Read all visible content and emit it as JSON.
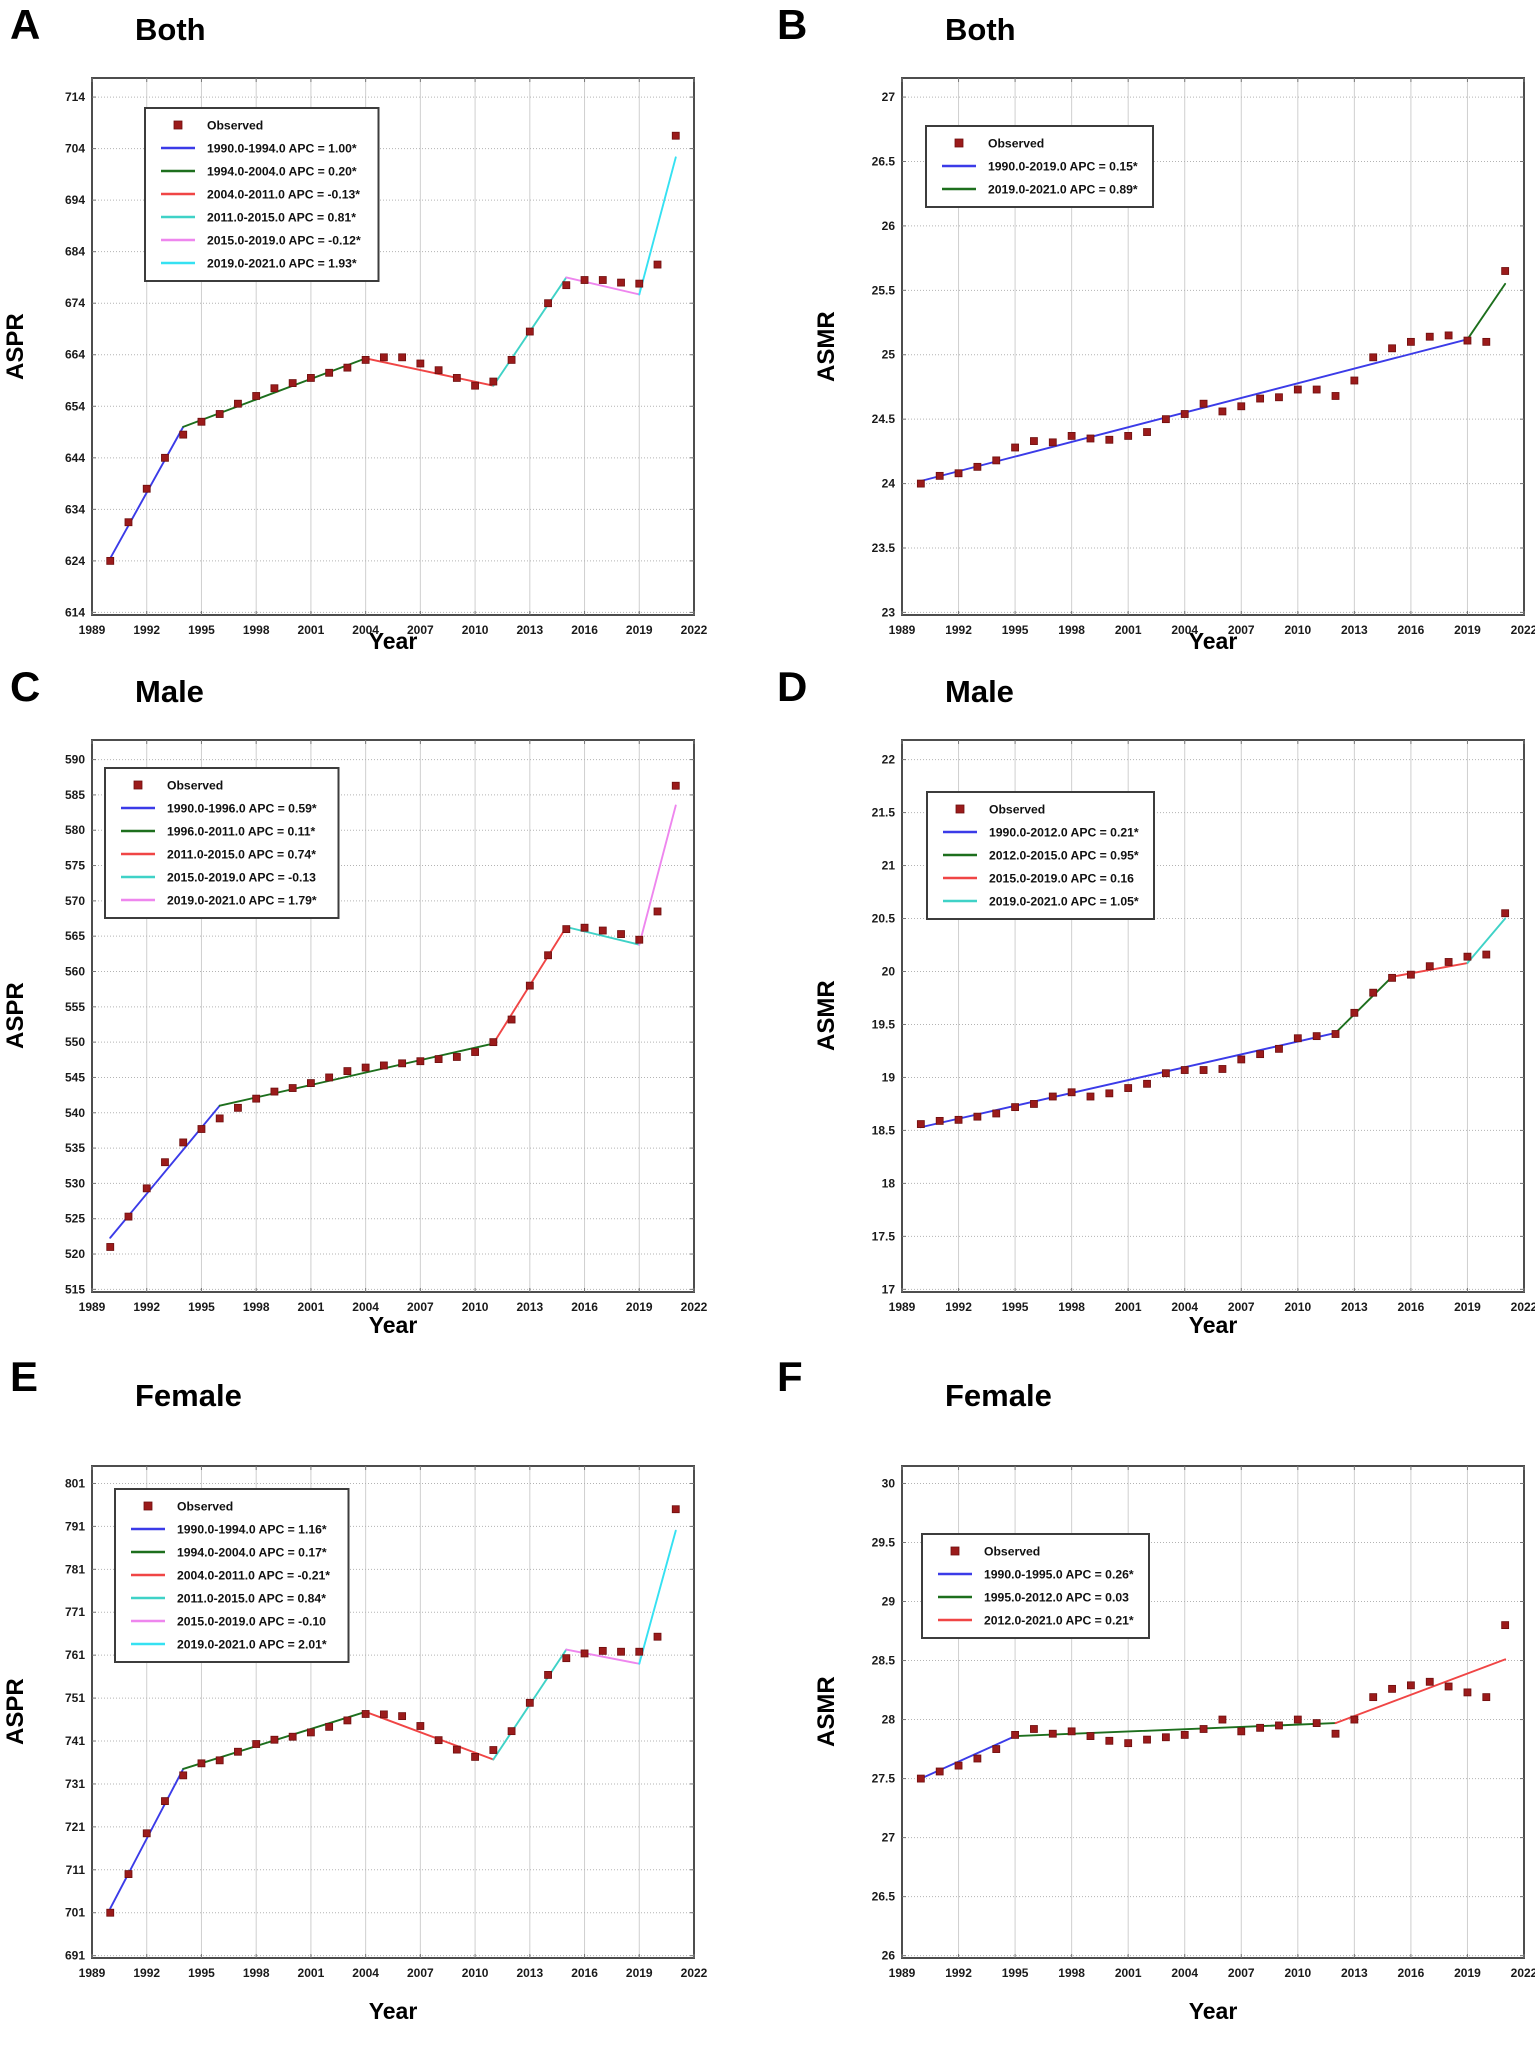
{
  "figure": {
    "x_axis_title": "Year",
    "marker_color": "#9B1B1B",
    "colors": {
      "blue": "#3B3BE8",
      "green": "#1D6F1D",
      "red": "#F04545",
      "turquoise": "#3FD2C7",
      "violet": "#EE86EE",
      "cyan": "#35E1F2"
    }
  },
  "chart_data": [
    {
      "panel_letter": "A",
      "title": "Both",
      "ylabel": "ASPR",
      "xlabel": "Year",
      "type": "scatter",
      "x": [
        1990,
        1991,
        1992,
        1993,
        1994,
        1995,
        1996,
        1997,
        1998,
        1999,
        2000,
        2001,
        2002,
        2003,
        2004,
        2005,
        2006,
        2007,
        2008,
        2009,
        2010,
        2011,
        2012,
        2013,
        2014,
        2015,
        2016,
        2017,
        2018,
        2019,
        2020,
        2021
      ],
      "observed": [
        624,
        631.5,
        638,
        644,
        648.5,
        651,
        652.5,
        654.5,
        656,
        657.5,
        658.5,
        659.5,
        660.5,
        661.5,
        663,
        663.5,
        663.5,
        662.3,
        661,
        659.5,
        658,
        658.8,
        663,
        668.5,
        674,
        677.5,
        678.5,
        678.5,
        678,
        677.8,
        681.5,
        706.5
      ],
      "ylim": [
        614,
        714
      ],
      "ytick_step": 10,
      "xticks": [
        1989,
        1992,
        1995,
        1998,
        2001,
        2004,
        2007,
        2010,
        2013,
        2016,
        2019,
        2022
      ],
      "xlim": [
        1989,
        2022
      ],
      "legend_pos": [
        53,
        30
      ],
      "legend": [
        {
          "label": "Observed",
          "marker": true
        },
        {
          "label": "1990.0-1994.0 APC  =  1.00*",
          "color": "#3B3BE8",
          "x": [
            1990,
            1994
          ],
          "y": [
            624.5,
            650
          ]
        },
        {
          "label": "1994.0-2004.0 APC  =  0.20*",
          "color": "#1D6F1D",
          "x": [
            1994,
            2004
          ],
          "y": [
            650,
            663.3
          ]
        },
        {
          "label": "2004.0-2011.0 APC  = -0.13*",
          "color": "#F04545",
          "x": [
            2004,
            2011
          ],
          "y": [
            663.3,
            658
          ]
        },
        {
          "label": "2011.0-2015.0 APC  =  0.81*",
          "color": "#3FD2C7",
          "x": [
            2011,
            2015
          ],
          "y": [
            658,
            679
          ]
        },
        {
          "label": "2015.0-2019.0 APC  = -0.12*",
          "color": "#EE86EE",
          "x": [
            2015,
            2019
          ],
          "y": [
            679,
            675.7
          ]
        },
        {
          "label": "2019.0-2021.0 APC  =  1.93*",
          "color": "#35E1F2",
          "x": [
            2019,
            2021
          ],
          "y": [
            675.7,
            702.3
          ]
        }
      ]
    },
    {
      "panel_letter": "B",
      "title": "Both",
      "ylabel": "ASMR",
      "xlabel": "Year",
      "type": "scatter",
      "x": [
        1990,
        1991,
        1992,
        1993,
        1994,
        1995,
        1996,
        1997,
        1998,
        1999,
        2000,
        2001,
        2002,
        2003,
        2004,
        2005,
        2006,
        2007,
        2008,
        2009,
        2010,
        2011,
        2012,
        2013,
        2014,
        2015,
        2016,
        2017,
        2018,
        2019,
        2020,
        2021
      ],
      "observed": [
        24.0,
        24.06,
        24.08,
        24.13,
        24.18,
        24.28,
        24.33,
        24.32,
        24.37,
        24.35,
        24.34,
        24.37,
        24.4,
        24.5,
        24.54,
        24.62,
        24.56,
        24.6,
        24.66,
        24.67,
        24.73,
        24.73,
        24.68,
        24.8,
        24.98,
        25.05,
        25.1,
        25.14,
        25.15,
        25.11,
        25.1,
        25.65
      ],
      "ylim": [
        23,
        27
      ],
      "ytick_step": 0.5,
      "xticks": [
        1989,
        1992,
        1995,
        1998,
        2001,
        2004,
        2007,
        2010,
        2013,
        2016,
        2019,
        2022
      ],
      "xlim": [
        1989,
        2022
      ],
      "legend_pos": [
        24,
        48
      ],
      "legend": [
        {
          "label": "Observed",
          "marker": true
        },
        {
          "label": "1990.0-2019.0 APC  = 0.15*",
          "color": "#3B3BE8",
          "x": [
            1990,
            2019
          ],
          "y": [
            24.02,
            25.12
          ]
        },
        {
          "label": "2019.0-2021.0 APC  = 0.89*",
          "color": "#1D6F1D",
          "x": [
            2019,
            2021
          ],
          "y": [
            25.12,
            25.55
          ]
        }
      ]
    },
    {
      "panel_letter": "C",
      "title": "Male",
      "ylabel": "ASPR",
      "xlabel": "Year",
      "type": "scatter",
      "x": [
        1990,
        1991,
        1992,
        1993,
        1994,
        1995,
        1996,
        1997,
        1998,
        1999,
        2000,
        2001,
        2002,
        2003,
        2004,
        2005,
        2006,
        2007,
        2008,
        2009,
        2010,
        2011,
        2012,
        2013,
        2014,
        2015,
        2016,
        2017,
        2018,
        2019,
        2020,
        2021
      ],
      "observed": [
        521,
        525.3,
        529.3,
        533,
        535.8,
        537.7,
        539.2,
        540.7,
        542,
        543,
        543.5,
        544.2,
        545,
        545.9,
        546.4,
        546.7,
        547,
        547.3,
        547.6,
        547.9,
        548.6,
        550,
        553.2,
        558,
        562.3,
        566,
        566.2,
        565.8,
        565.3,
        564.5,
        568.5,
        586.3
      ],
      "ylim": [
        515,
        590
      ],
      "ytick_step": 5,
      "xticks": [
        1989,
        1992,
        1995,
        1998,
        2001,
        2004,
        2007,
        2010,
        2013,
        2016,
        2019,
        2022
      ],
      "xlim": [
        1989,
        2022
      ],
      "legend_pos": [
        13,
        28
      ],
      "legend": [
        {
          "label": "Observed",
          "marker": true
        },
        {
          "label": "1990.0-1996.0 APC  =  0.59*",
          "color": "#3B3BE8",
          "x": [
            1990,
            1996
          ],
          "y": [
            522.3,
            541
          ]
        },
        {
          "label": "1996.0-2011.0 APC  =  0.11*",
          "color": "#1D6F1D",
          "x": [
            1996,
            2011
          ],
          "y": [
            541,
            549.8
          ]
        },
        {
          "label": "2011.0-2015.0 APC  =  0.74*",
          "color": "#F04545",
          "x": [
            2011,
            2015
          ],
          "y": [
            549.8,
            566.3
          ]
        },
        {
          "label": "2015.0-2019.0 APC  = -0.13",
          "color": "#3FD2C7",
          "x": [
            2015,
            2019
          ],
          "y": [
            566.3,
            563.8
          ]
        },
        {
          "label": "2019.0-2021.0 APC  =  1.79*",
          "color": "#EE86EE",
          "x": [
            2019,
            2021
          ],
          "y": [
            563.8,
            583.5
          ]
        }
      ]
    },
    {
      "panel_letter": "D",
      "title": "Male",
      "ylabel": "ASMR",
      "xlabel": "Year",
      "type": "scatter",
      "x": [
        1990,
        1991,
        1992,
        1993,
        1994,
        1995,
        1996,
        1997,
        1998,
        1999,
        2000,
        2001,
        2002,
        2003,
        2004,
        2005,
        2006,
        2007,
        2008,
        2009,
        2010,
        2011,
        2012,
        2013,
        2014,
        2015,
        2016,
        2017,
        2018,
        2019,
        2020,
        2021
      ],
      "observed": [
        18.56,
        18.59,
        18.6,
        18.63,
        18.66,
        18.72,
        18.75,
        18.82,
        18.86,
        18.82,
        18.85,
        18.9,
        18.94,
        19.04,
        19.07,
        19.07,
        19.08,
        19.17,
        19.22,
        19.27,
        19.37,
        19.39,
        19.41,
        19.61,
        19.8,
        19.94,
        19.97,
        20.05,
        20.09,
        20.14,
        20.16,
        20.55
      ],
      "ylim": [
        17,
        22
      ],
      "ytick_step": 0.5,
      "xticks": [
        1989,
        1992,
        1995,
        1998,
        2001,
        2004,
        2007,
        2010,
        2013,
        2016,
        2019,
        2022
      ],
      "xlim": [
        1989,
        2022
      ],
      "legend_pos": [
        25,
        52
      ],
      "legend": [
        {
          "label": "Observed",
          "marker": true
        },
        {
          "label": "1990.0-2012.0 APC  = 0.21*",
          "color": "#3B3BE8",
          "x": [
            1990,
            2012
          ],
          "y": [
            18.53,
            19.42
          ]
        },
        {
          "label": "2012.0-2015.0 APC  = 0.95*",
          "color": "#1D6F1D",
          "x": [
            2012,
            2015
          ],
          "y": [
            19.42,
            19.95
          ]
        },
        {
          "label": "2015.0-2019.0 APC  = 0.16",
          "color": "#F04545",
          "x": [
            2015,
            2019
          ],
          "y": [
            19.95,
            20.08
          ]
        },
        {
          "label": "2019.0-2021.0 APC  = 1.05*",
          "color": "#3FD2C7",
          "x": [
            2019,
            2021
          ],
          "y": [
            20.08,
            20.5
          ]
        }
      ]
    },
    {
      "panel_letter": "E",
      "title": "Female",
      "ylabel": "ASPR",
      "xlabel": "Year",
      "type": "scatter",
      "x": [
        1990,
        1991,
        1992,
        1993,
        1994,
        1995,
        1996,
        1997,
        1998,
        1999,
        2000,
        2001,
        2002,
        2003,
        2004,
        2005,
        2006,
        2007,
        2008,
        2009,
        2010,
        2011,
        2012,
        2013,
        2014,
        2015,
        2016,
        2017,
        2018,
        2019,
        2020,
        2021
      ],
      "observed": [
        701,
        710,
        719.5,
        727,
        733,
        735.8,
        736.5,
        738.5,
        740.3,
        741.3,
        742,
        743,
        744.3,
        745.8,
        747.3,
        747.2,
        746.8,
        744.5,
        741.2,
        739,
        737.3,
        738.9,
        743.3,
        749.9,
        756.4,
        760.3,
        761.4,
        762,
        761.8,
        761.8,
        765.3,
        795
      ],
      "ylim": [
        691,
        801
      ],
      "ytick_step": 10,
      "xticks": [
        1989,
        1992,
        1995,
        1998,
        2001,
        2004,
        2007,
        2010,
        2013,
        2016,
        2019,
        2022
      ],
      "xlim": [
        1989,
        2022
      ],
      "legend_pos": [
        23,
        23
      ],
      "legend": [
        {
          "label": "Observed",
          "marker": true
        },
        {
          "label": "1990.0-1994.0 APC  =  1.16*",
          "color": "#3B3BE8",
          "x": [
            1990,
            1994
          ],
          "y": [
            702,
            734.5
          ]
        },
        {
          "label": "1994.0-2004.0 APC  =  0.17*",
          "color": "#1D6F1D",
          "x": [
            1994,
            2004
          ],
          "y": [
            734.5,
            747.8
          ]
        },
        {
          "label": "2004.0-2011.0 APC  = -0.21*",
          "color": "#F04545",
          "x": [
            2004,
            2011
          ],
          "y": [
            747.8,
            736.7
          ]
        },
        {
          "label": "2011.0-2015.0 APC  =  0.84*",
          "color": "#3FD2C7",
          "x": [
            2011,
            2015
          ],
          "y": [
            736.7,
            762.3
          ]
        },
        {
          "label": "2015.0-2019.0 APC  = -0.10",
          "color": "#EE86EE",
          "x": [
            2015,
            2019
          ],
          "y": [
            762.3,
            759
          ]
        },
        {
          "label": "2019.0-2021.0 APC  =  2.01*",
          "color": "#35E1F2",
          "x": [
            2019,
            2021
          ],
          "y": [
            759,
            790
          ]
        }
      ]
    },
    {
      "panel_letter": "F",
      "title": "Female",
      "ylabel": "ASMR",
      "xlabel": "Year",
      "type": "scatter",
      "x": [
        1990,
        1991,
        1992,
        1993,
        1994,
        1995,
        1996,
        1997,
        1998,
        1999,
        2000,
        2001,
        2002,
        2003,
        2004,
        2005,
        2006,
        2007,
        2008,
        2009,
        2010,
        2011,
        2012,
        2013,
        2014,
        2015,
        2016,
        2017,
        2018,
        2019,
        2020,
        2021
      ],
      "observed": [
        27.5,
        27.56,
        27.61,
        27.67,
        27.75,
        27.87,
        27.92,
        27.88,
        27.9,
        27.86,
        27.82,
        27.8,
        27.83,
        27.85,
        27.87,
        27.92,
        28.0,
        27.9,
        27.93,
        27.95,
        28.0,
        27.97,
        27.88,
        28.0,
        28.19,
        28.26,
        28.29,
        28.32,
        28.28,
        28.23,
        28.19,
        28.8
      ],
      "ylim": [
        26,
        30
      ],
      "ytick_step": 0.5,
      "xticks": [
        1989,
        1992,
        1995,
        1998,
        2001,
        2004,
        2007,
        2010,
        2013,
        2016,
        2019,
        2022
      ],
      "xlim": [
        1989,
        2022
      ],
      "legend_pos": [
        20,
        68
      ],
      "legend": [
        {
          "label": "Observed",
          "marker": true
        },
        {
          "label": "1990.0-1995.0 APC  = 0.26*",
          "color": "#3B3BE8",
          "x": [
            1990,
            1995
          ],
          "y": [
            27.5,
            27.86
          ]
        },
        {
          "label": "1995.0-2012.0 APC  = 0.03",
          "color": "#1D6F1D",
          "x": [
            1995,
            2012
          ],
          "y": [
            27.86,
            27.97
          ]
        },
        {
          "label": "2012.0-2021.0 APC  = 0.21*",
          "color": "#F04545",
          "x": [
            2012,
            2021
          ],
          "y": [
            27.97,
            28.51
          ]
        }
      ]
    }
  ]
}
